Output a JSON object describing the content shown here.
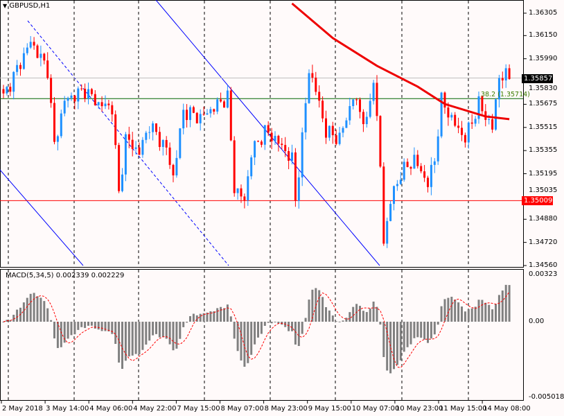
{
  "header": {
    "symbol_label": "GBPUSD,H1"
  },
  "macd": {
    "label": "MACD(5,34,5) 0.002339 0.002229"
  },
  "fib": {
    "label": "38.2 (1.35714)"
  },
  "colors": {
    "bull": "#1e90ff",
    "bear": "#ff0000",
    "ma": "#ee0000",
    "trend": "#0000ff",
    "hist": "#808080",
    "fib": "#006400"
  },
  "chart_data": [
    {
      "type": "candlestick",
      "title": "GBPUSD,H1",
      "ylim": [
        1.3456,
        1.36305
      ],
      "y_ticks": [
        "1.36305",
        "1.36150",
        "1.35990",
        "1.35830",
        "1.35675",
        "1.35515",
        "1.35355",
        "1.35195",
        "1.35035",
        "1.34880",
        "1.34720",
        "1.34560"
      ],
      "x_ticks": [
        "2 May 2018",
        "3 May 14:00",
        "4 May 06:00",
        "4 May 22:00",
        "7 May 15:00",
        "8 May 07:00",
        "8 May 23:00",
        "9 May 15:00",
        "10 May 07:00",
        "10 May 23:00",
        "11 May 15:00",
        "14 May 08:00"
      ],
      "candle_count": 150,
      "close_anchors": [
        [
          0,
          1.35725
        ],
        [
          5,
          1.35965
        ],
        [
          8,
          1.36109
        ],
        [
          13,
          1.35917
        ],
        [
          15,
          1.3539
        ],
        [
          18,
          1.35701
        ],
        [
          24,
          1.35773
        ],
        [
          28,
          1.35677
        ],
        [
          32,
          1.35653
        ],
        [
          34,
          1.35055
        ],
        [
          36,
          1.35438
        ],
        [
          40,
          1.35342
        ],
        [
          43,
          1.35534
        ],
        [
          48,
          1.35366
        ],
        [
          50,
          1.35175
        ],
        [
          53,
          1.3563
        ],
        [
          58,
          1.35582
        ],
        [
          66,
          1.35725
        ],
        [
          68,
          1.35103
        ],
        [
          71,
          1.35007
        ],
        [
          73,
          1.35342
        ],
        [
          77,
          1.35486
        ],
        [
          80,
          1.35438
        ],
        [
          85,
          1.35294
        ],
        [
          86,
          1.35007
        ],
        [
          88,
          1.35438
        ],
        [
          90,
          1.35917
        ],
        [
          92,
          1.35773
        ],
        [
          95,
          1.35486
        ],
        [
          99,
          1.35438
        ],
        [
          103,
          1.35725
        ],
        [
          107,
          1.35534
        ],
        [
          109,
          1.35869
        ],
        [
          111,
          1.35246
        ],
        [
          112,
          1.3472
        ],
        [
          114,
          1.35007
        ],
        [
          117,
          1.35198
        ],
        [
          121,
          1.35294
        ],
        [
          125,
          1.35127
        ],
        [
          127,
          1.35294
        ],
        [
          129,
          1.35701
        ],
        [
          133,
          1.35534
        ],
        [
          136,
          1.35438
        ],
        [
          140,
          1.35677
        ],
        [
          144,
          1.3551
        ],
        [
          146,
          1.35869
        ],
        [
          149,
          1.35869
        ]
      ],
      "ma_points": [
        [
          85,
          1.36372
        ],
        [
          97,
          1.36133
        ],
        [
          110,
          1.35941
        ],
        [
          122,
          1.35797
        ],
        [
          130,
          1.35677
        ],
        [
          142,
          1.35591
        ],
        [
          149,
          1.35572
        ]
      ],
      "current_price": "1.35857",
      "hlines": [
        {
          "price": 1.35857,
          "label": "1.35857",
          "color": "#c0c0c0"
        },
        {
          "price": 1.35714,
          "label": "38.2 (1.35714)",
          "color": "#006400"
        },
        {
          "price": 1.35009,
          "label": "1.35009",
          "color": "#ff0000"
        }
      ]
    },
    {
      "type": "bar+line",
      "title": "MACD(5,34,5)",
      "ylim": [
        -0.00518,
        0.00323
      ],
      "y_ticks": [
        "0.00323",
        "0.00",
        "-0.005018"
      ],
      "macd_value": 0.002339,
      "signal_value": 0.002229
    }
  ]
}
